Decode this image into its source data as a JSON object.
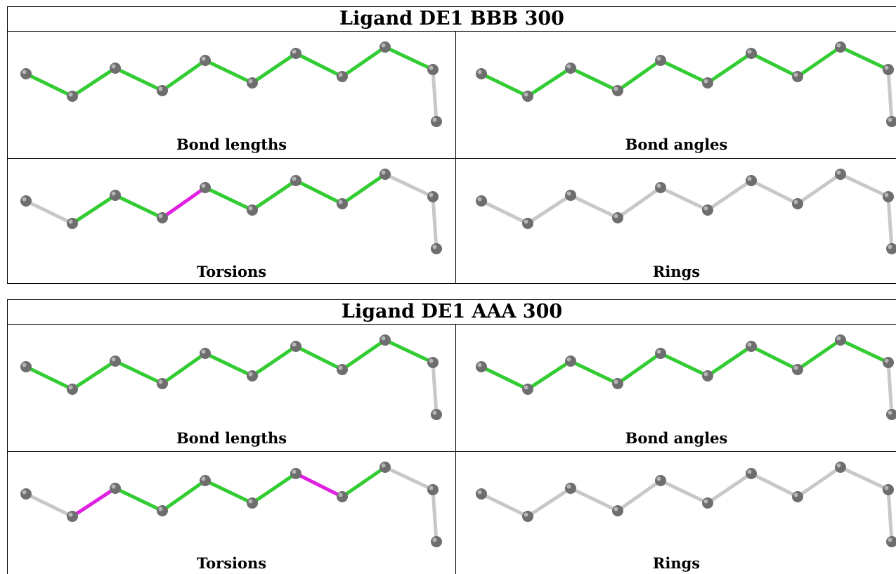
{
  "blocks": [
    {
      "title": "Ligand DE1 BBB 300",
      "panels": [
        {
          "caption": "Bond lengths",
          "bond_colors": [
            "green",
            "green",
            "green",
            "green",
            "green",
            "green",
            "green",
            "green",
            "green"
          ]
        },
        {
          "caption": "Bond angles",
          "bond_colors": [
            "green",
            "green",
            "green",
            "green",
            "green",
            "green",
            "green",
            "green",
            "green"
          ]
        },
        {
          "caption": "Torsions",
          "bond_colors": [
            "grey",
            "green",
            "green",
            "magenta",
            "green",
            "green",
            "green",
            "green",
            "grey"
          ]
        },
        {
          "caption": "Rings",
          "bond_colors": [
            "grey",
            "grey",
            "grey",
            "grey",
            "grey",
            "grey",
            "grey",
            "grey",
            "grey"
          ]
        }
      ]
    },
    {
      "title": "Ligand DE1 AAA 300",
      "panels": [
        {
          "caption": "Bond lengths",
          "bond_colors": [
            "green",
            "green",
            "green",
            "green",
            "green",
            "green",
            "green",
            "green",
            "green"
          ]
        },
        {
          "caption": "Bond angles",
          "bond_colors": [
            "green",
            "green",
            "green",
            "green",
            "green",
            "green",
            "green",
            "green",
            "green"
          ]
        },
        {
          "caption": "Torsions",
          "bond_colors": [
            "grey",
            "magenta",
            "green",
            "green",
            "green",
            "green",
            "magenta",
            "green",
            "grey"
          ]
        },
        {
          "caption": "Rings",
          "bond_colors": [
            "grey",
            "grey",
            "grey",
            "grey",
            "grey",
            "grey",
            "grey",
            "grey",
            "grey"
          ]
        }
      ]
    }
  ],
  "colors": {
    "green": "#33cc33",
    "magenta": "#e020e0",
    "grey": "#c8c8c8",
    "atom": "#6e6e6e"
  }
}
